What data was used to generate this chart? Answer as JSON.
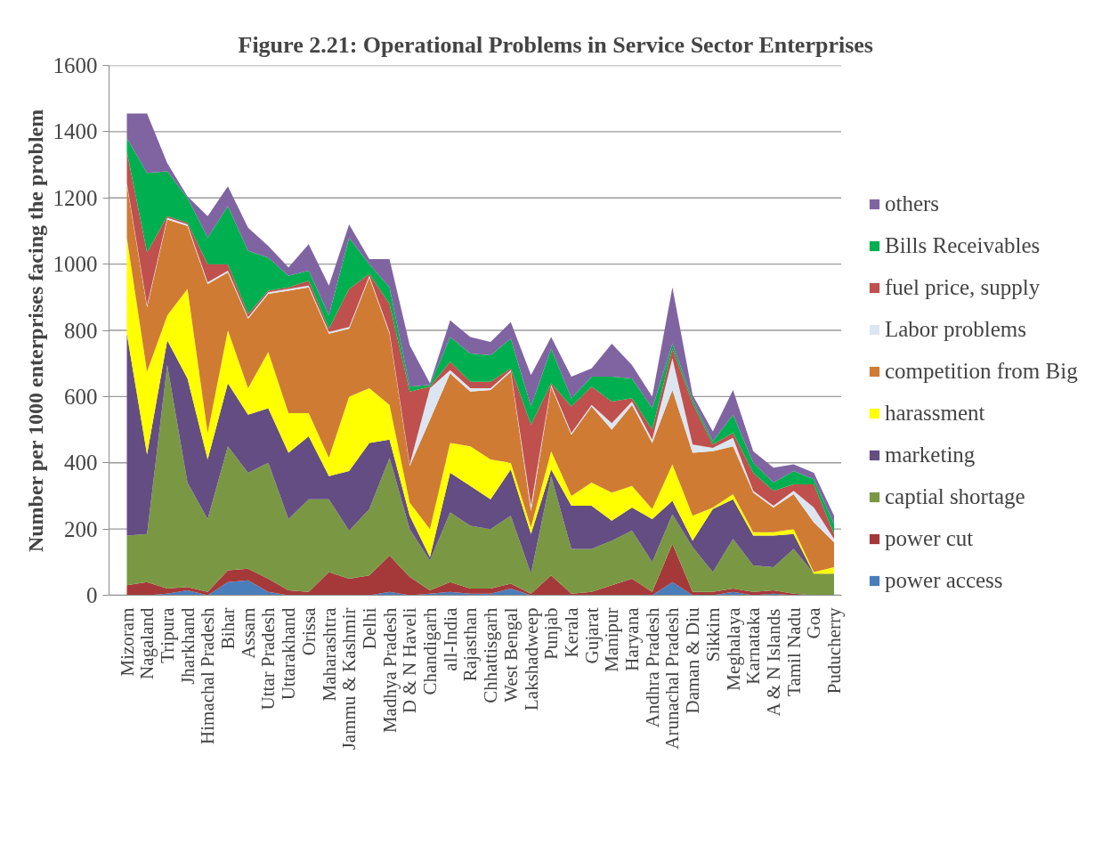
{
  "chart_data": {
    "type": "area",
    "stacked": true,
    "title": "Figure 2.21: Operational Problems in Service Sector Enterprises",
    "ylabel": "Number per 1000 enterprises facing the problem",
    "categories": [
      "Mizoram",
      "Nagaland",
      "Tripura",
      "Jharkhand",
      "Himachal Pradesh",
      "Bihar",
      "Assam",
      "Uttar Pradesh",
      "Uttarakhand",
      "Orissa",
      "Maharashtra",
      "Jammu & Kashmir",
      "Delhi",
      "Madhya Pradesh",
      "D & N Haveli",
      "Chandigarh",
      "all-India",
      "Rajasthan",
      "Chhattisgarh",
      "West Bengal",
      "Lakshadweep",
      "Punjab",
      "Kerala",
      "Gujarat",
      "Manipur",
      "Haryana",
      "Andhra Pradesh",
      "Arunachal Pradesh",
      "Daman & Diu",
      "Sikkim",
      "Meghalaya",
      "Karnataka",
      "A & N Islands",
      "Tamil Nadu",
      "Goa",
      "Puducherry"
    ],
    "ylim": [
      0,
      1600
    ],
    "yticks": [
      0,
      200,
      400,
      600,
      800,
      1000,
      1200,
      1400,
      1600
    ],
    "grid": "y",
    "legend": "right",
    "series": [
      {
        "name": "power access",
        "color": "#4a7ebb",
        "values": [
          0,
          0,
          5,
          15,
          0,
          40,
          45,
          10,
          0,
          0,
          0,
          0,
          0,
          10,
          0,
          5,
          10,
          5,
          5,
          20,
          0,
          0,
          0,
          0,
          0,
          0,
          0,
          40,
          0,
          0,
          10,
          0,
          5,
          0,
          0,
          0
        ]
      },
      {
        "name": "power cut",
        "color": "#a5393a",
        "values": [
          30,
          40,
          15,
          10,
          10,
          35,
          35,
          40,
          15,
          10,
          70,
          50,
          60,
          110,
          55,
          10,
          30,
          15,
          15,
          15,
          5,
          60,
          5,
          10,
          30,
          50,
          10,
          115,
          10,
          10,
          10,
          10,
          10,
          5,
          0,
          0
        ]
      },
      {
        "name": "captial shortage",
        "color": "#7a9843",
        "values": [
          150,
          145,
          675,
          315,
          220,
          375,
          290,
          350,
          215,
          280,
          220,
          145,
          200,
          295,
          145,
          90,
          210,
          190,
          180,
          205,
          60,
          300,
          135,
          130,
          135,
          145,
          90,
          90,
          135,
          60,
          150,
          80,
          70,
          135,
          65,
          65
        ]
      },
      {
        "name": "marketing",
        "color": "#634d83",
        "values": [
          610,
          240,
          75,
          315,
          180,
          190,
          175,
          165,
          200,
          190,
          70,
          180,
          200,
          55,
          40,
          10,
          120,
          120,
          90,
          140,
          120,
          20,
          130,
          130,
          60,
          70,
          130,
          40,
          20,
          190,
          120,
          90,
          95,
          45,
          0,
          0
        ]
      },
      {
        "name": "harassment",
        "color": "#ffff00",
        "values": [
          290,
          250,
          75,
          270,
          80,
          160,
          80,
          170,
          120,
          70,
          55,
          225,
          165,
          105,
          40,
          85,
          90,
          120,
          120,
          20,
          20,
          55,
          30,
          70,
          85,
          65,
          30,
          110,
          75,
          5,
          15,
          10,
          10,
          15,
          5,
          20
        ]
      },
      {
        "name": "competition from Big",
        "color": "#d07b34",
        "values": [
          160,
          195,
          290,
          190,
          450,
          175,
          210,
          175,
          370,
          380,
          375,
          205,
          335,
          215,
          110,
          330,
          210,
          165,
          210,
          275,
          50,
          195,
          185,
          230,
          190,
          245,
          200,
          225,
          190,
          170,
          145,
          120,
          75,
          105,
          150,
          75
        ]
      },
      {
        "name": "Labor problems",
        "color": "#dce6f2",
        "values": [
          5,
          5,
          5,
          5,
          5,
          5,
          5,
          5,
          5,
          5,
          5,
          5,
          5,
          5,
          5,
          95,
          10,
          10,
          5,
          5,
          15,
          5,
          5,
          5,
          20,
          10,
          10,
          95,
          25,
          10,
          25,
          5,
          5,
          10,
          45,
          10
        ]
      },
      {
        "name": "fuel price, supply",
        "color": "#c0504d",
        "values": [
          95,
          160,
          5,
          5,
          55,
          20,
          10,
          5,
          5,
          15,
          10,
          115,
          5,
          85,
          220,
          5,
          25,
          20,
          20,
          5,
          245,
          5,
          80,
          55,
          65,
          10,
          30,
          30,
          125,
          10,
          15,
          55,
          45,
          20,
          70,
          15
        ]
      },
      {
        "name": "Bills Receivables",
        "color": "#00b050",
        "values": [
          40,
          240,
          135,
          75,
          80,
          175,
          190,
          100,
          35,
          30,
          40,
          155,
          30,
          50,
          15,
          5,
          75,
          85,
          80,
          90,
          55,
          105,
          25,
          30,
          75,
          60,
          65,
          15,
          10,
          10,
          55,
          30,
          25,
          40,
          15,
          30
        ]
      },
      {
        "name": "others",
        "color": "#8064a2",
        "values": [
          75,
          180,
          25,
          5,
          65,
          60,
          70,
          35,
          25,
          80,
          90,
          40,
          15,
          85,
          125,
          5,
          50,
          50,
          40,
          50,
          95,
          35,
          65,
          25,
          100,
          40,
          35,
          170,
          15,
          30,
          75,
          35,
          45,
          20,
          20,
          25
        ]
      }
    ]
  }
}
